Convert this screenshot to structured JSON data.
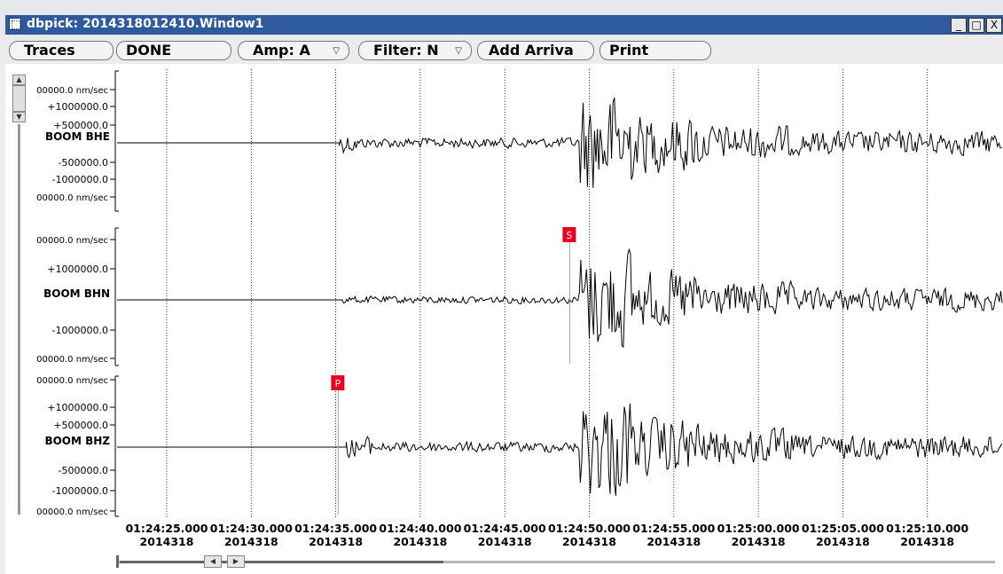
{
  "window": {
    "title": "dbpick: 2014318012410.Window1",
    "min_label": "_",
    "max_label": "□",
    "close_label": "X"
  },
  "toolbar": {
    "traces_label": "Traces",
    "done_label": "DONE",
    "amp_label": "Amp: A",
    "filter_label": "Filter: N",
    "add_arrival_label": "Add Arriva",
    "print_label": "Print"
  },
  "scrollbar": {
    "up_arrow": "▲",
    "down_arrow": "▼",
    "left_arrow": "◀",
    "right_arrow": "▶"
  },
  "traces": [
    {
      "name": "BOOM BHE",
      "amp_labels": [
        "00000.0 nm/sec",
        "+1000000.0",
        "+500000.0",
        "-500000.0",
        "-1000000.0",
        "00000.0 nm/sec"
      ]
    },
    {
      "name": "BOOM BHN",
      "amp_labels": [
        "00000.0 nm/sec",
        "+1000000.0",
        "-1000000.0",
        "00000.0 nm/sec"
      ]
    },
    {
      "name": "BOOM BHZ",
      "amp_labels": [
        "00000.0 nm/sec",
        "+1000000.0",
        "+500000.0",
        "-500000.0",
        "-1000000.0",
        "00000.0 nm/sec"
      ]
    }
  ],
  "picks": [
    {
      "label": "S",
      "time": "01:24:48.800",
      "trace": "BOOM BHN"
    },
    {
      "label": "P",
      "time": "01:24:35.100",
      "trace": "BOOM BHZ"
    }
  ],
  "time_axis": {
    "ticks": [
      {
        "time": "01:24:25.000",
        "date": "2014318"
      },
      {
        "time": "01:24:30.000",
        "date": "2014318"
      },
      {
        "time": "01:24:35.000",
        "date": "2014318"
      },
      {
        "time": "01:24:40.000",
        "date": "2014318"
      },
      {
        "time": "01:24:45.000",
        "date": "2014318"
      },
      {
        "time": "01:24:50.000",
        "date": "2014318"
      },
      {
        "time": "01:24:55.000",
        "date": "2014318"
      },
      {
        "time": "01:25:00.000",
        "date": "2014318"
      },
      {
        "time": "01:25:05.000",
        "date": "2014318"
      },
      {
        "time": "01:25:10.000",
        "date": "2014318"
      }
    ]
  },
  "colors": {
    "titlebar": "#2f5a9e",
    "pick_flag": "#e8001c",
    "pick_line": "#9aa0c8",
    "trace": "#000000",
    "grid": "#000000"
  }
}
